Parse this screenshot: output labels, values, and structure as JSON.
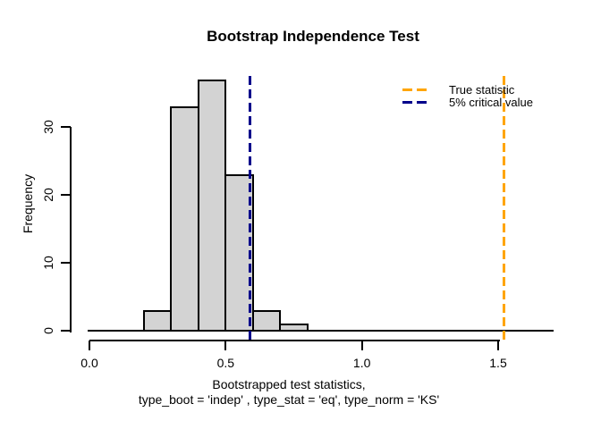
{
  "title": "Bootstrap Independence Test",
  "y_axis": {
    "label": "Frequency",
    "ticks": [
      {
        "value": 0,
        "label": "0"
      },
      {
        "value": 10,
        "label": "10"
      },
      {
        "value": 20,
        "label": "20"
      },
      {
        "value": 30,
        "label": "30"
      }
    ]
  },
  "x_axis": {
    "label_line1": "Bootstrapped test statistics,",
    "label_line2": "type_boot = 'indep' , type_stat = 'eq', type_norm = 'KS'",
    "ticks": [
      {
        "value": 0.0,
        "label": "0.0"
      },
      {
        "value": 0.5,
        "label": "0.5"
      },
      {
        "value": 1.0,
        "label": "1.0"
      },
      {
        "value": 1.5,
        "label": "1.5"
      }
    ]
  },
  "legend": {
    "items": [
      {
        "label": "True statistic",
        "color": "#FFA500"
      },
      {
        "label": "5% critical value",
        "color": "#00008B"
      }
    ]
  },
  "chart_data": {
    "type": "bar",
    "subtype": "histogram",
    "title": "Bootstrap Independence Test",
    "xlabel": "Bootstrapped test statistics, type_boot = 'indep' , type_stat = 'eq', type_norm = 'KS'",
    "ylabel": "Frequency",
    "xlim": [
      0,
      1.7
    ],
    "ylim": [
      0,
      38
    ],
    "grid": false,
    "bin_edges": [
      0.2,
      0.3,
      0.4,
      0.5,
      0.6,
      0.7,
      0.8
    ],
    "counts": [
      3,
      33,
      37,
      23,
      3,
      1
    ],
    "bar_fill": "#D3D3D3",
    "bar_border": "#000000",
    "vlines": [
      {
        "name": "critical-value-5pct",
        "value": 0.59,
        "color": "#00008B",
        "style": "dashed",
        "legend": "5% critical value"
      },
      {
        "name": "true-statistic",
        "value": 1.52,
        "color": "#FFA500",
        "style": "dashed",
        "legend": "True statistic"
      }
    ],
    "legend_position": "top-right",
    "legend_box": false
  }
}
